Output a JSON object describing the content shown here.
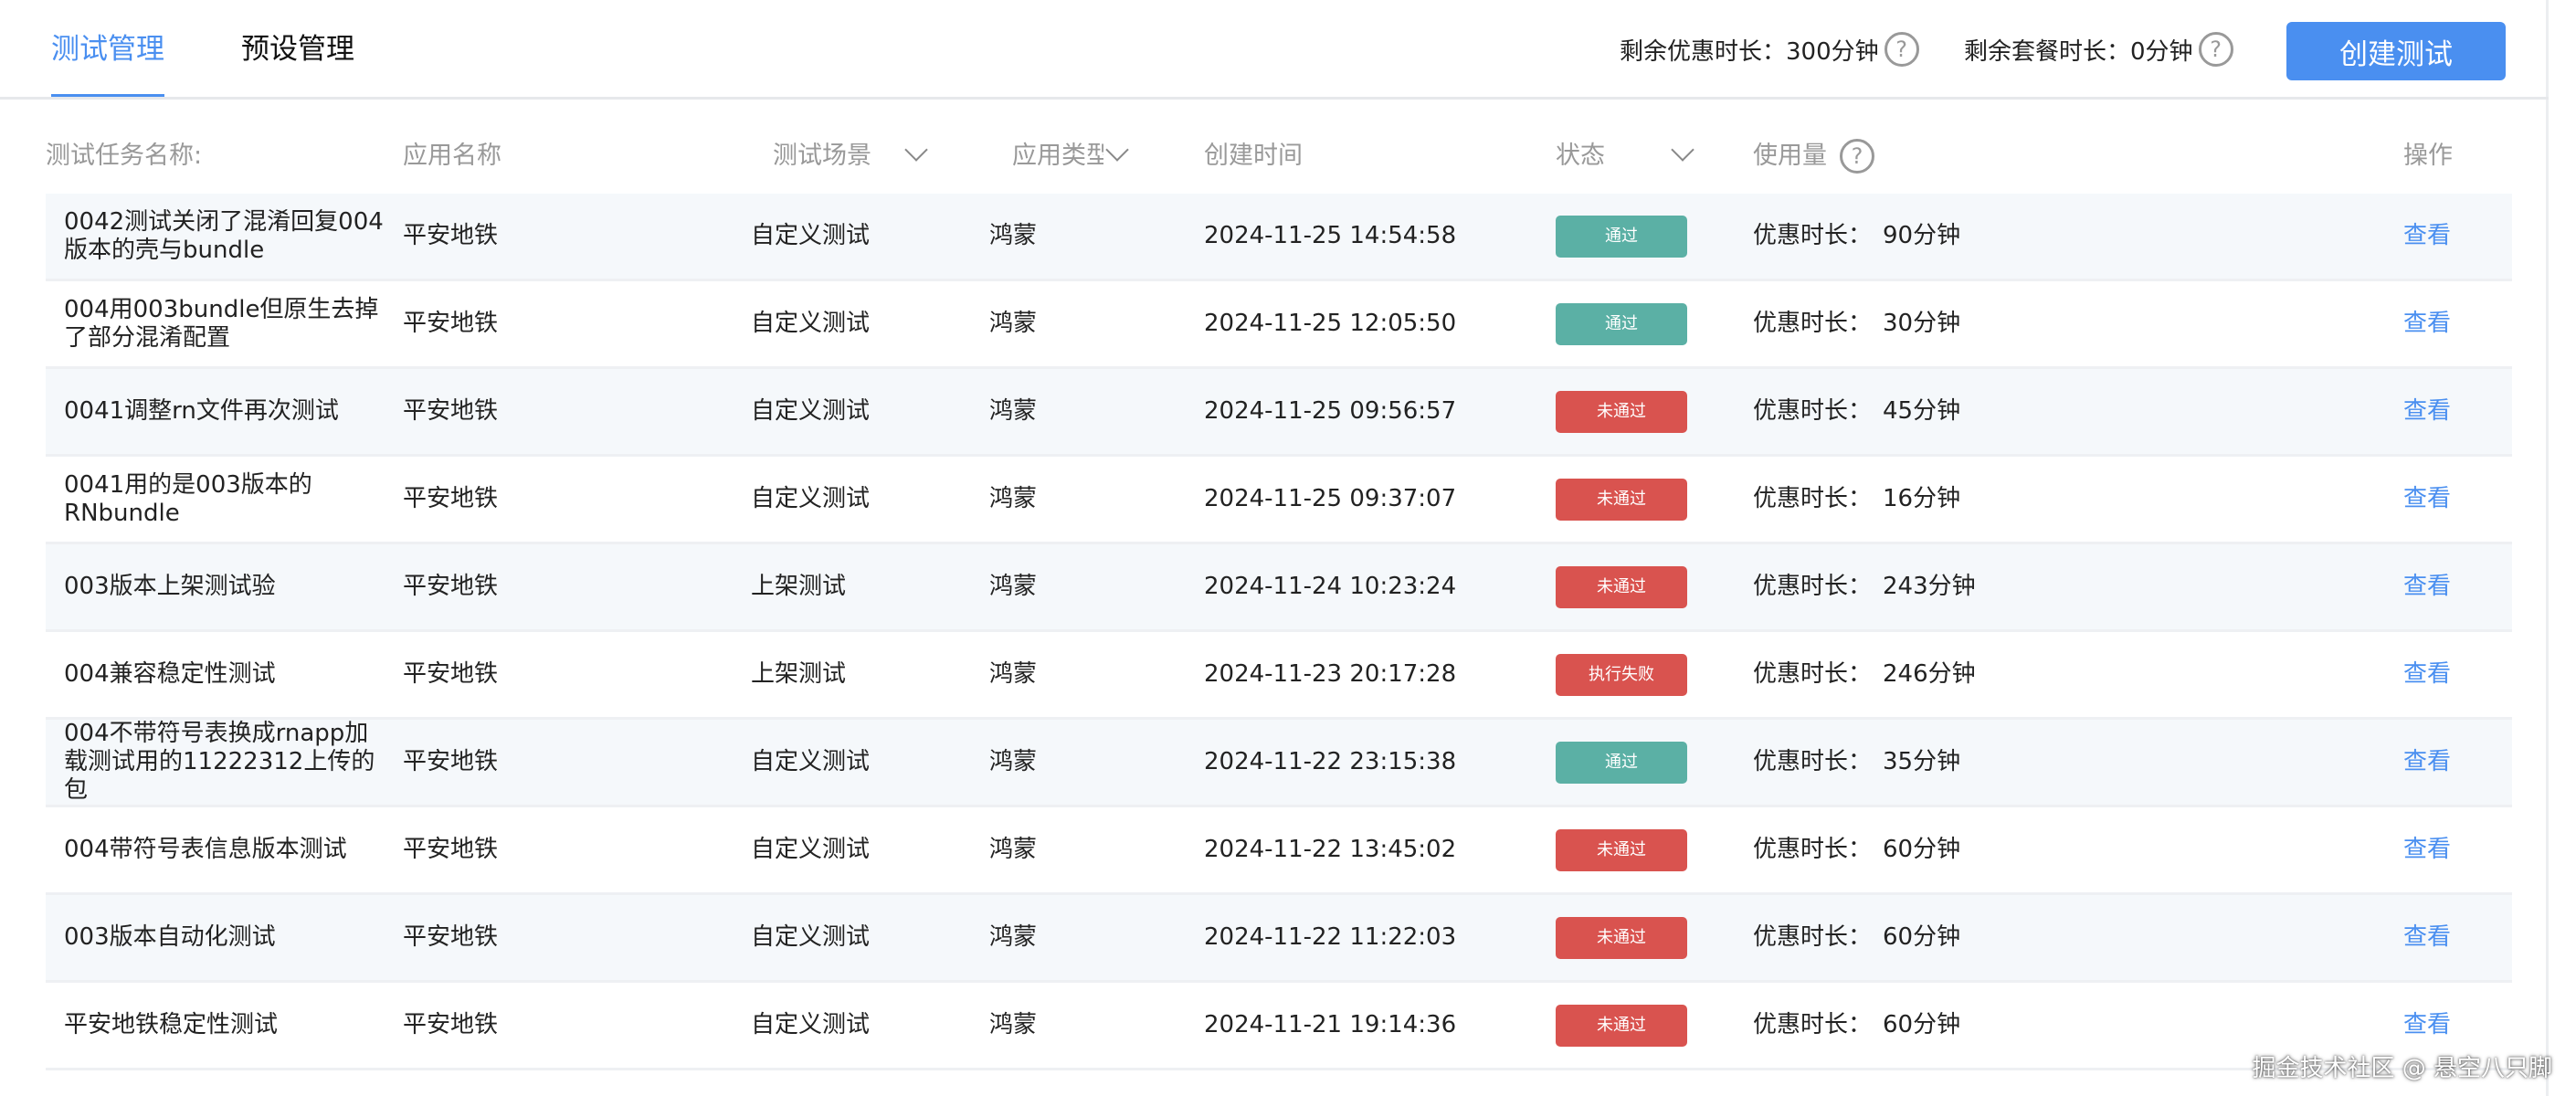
{
  "tabs": [
    {
      "label": "测试管理",
      "active": true
    },
    {
      "label": "预设管理",
      "active": false
    }
  ],
  "quota": {
    "discount_label": "剩余优惠时长：",
    "discount_value": "300分钟",
    "package_label": "剩余套餐时长：",
    "package_value": "0分钟",
    "help_icon": "question-circle-icon"
  },
  "create_button": "创建测试",
  "colors": {
    "accent": "#4a8ff0",
    "pass": "#5bb0a5",
    "fail": "#d9534f"
  },
  "columns": {
    "name": "测试任务名称:",
    "app": "应用名称",
    "scene": "测试场景",
    "type": "应用类型",
    "time": "创建时间",
    "status": "状态",
    "usage": "使用量",
    "action": "操作"
  },
  "rows": [
    {
      "name": "0042测试关闭了混淆回复004版本的壳与bundle",
      "app": "平安地铁",
      "scene": "自定义测试",
      "type": "鸿蒙",
      "time": "2024-11-25 14:54:58",
      "status": "通过",
      "usage_label": "优惠时长：",
      "usage": "90分钟",
      "action": "查看"
    },
    {
      "name": "004用003bundle但原生去掉了部分混淆配置",
      "app": "平安地铁",
      "scene": "自定义测试",
      "type": "鸿蒙",
      "time": "2024-11-25 12:05:50",
      "status": "通过",
      "usage_label": "优惠时长：",
      "usage": "30分钟",
      "action": "查看"
    },
    {
      "name": "0041调整rn文件再次测试",
      "app": "平安地铁",
      "scene": "自定义测试",
      "type": "鸿蒙",
      "time": "2024-11-25 09:56:57",
      "status": "未通过",
      "usage_label": "优惠时长：",
      "usage": "45分钟",
      "action": "查看"
    },
    {
      "name": "0041用的是003版本的RNbundle",
      "app": "平安地铁",
      "scene": "自定义测试",
      "type": "鸿蒙",
      "time": "2024-11-25 09:37:07",
      "status": "未通过",
      "usage_label": "优惠时长：",
      "usage": "16分钟",
      "action": "查看"
    },
    {
      "name": "003版本上架测试验",
      "app": "平安地铁",
      "scene": "上架测试",
      "type": "鸿蒙",
      "time": "2024-11-24 10:23:24",
      "status": "未通过",
      "usage_label": "优惠时长：",
      "usage": "243分钟",
      "action": "查看"
    },
    {
      "name": "004兼容稳定性测试",
      "app": "平安地铁",
      "scene": "上架测试",
      "type": "鸿蒙",
      "time": "2024-11-23 20:17:28",
      "status": "执行失败",
      "usage_label": "优惠时长：",
      "usage": "246分钟",
      "action": "查看"
    },
    {
      "name": "004不带符号表换成rnapp加载测试用的11222312上传的包",
      "app": "平安地铁",
      "scene": "自定义测试",
      "type": "鸿蒙",
      "time": "2024-11-22 23:15:38",
      "status": "通过",
      "usage_label": "优惠时长：",
      "usage": "35分钟",
      "action": "查看"
    },
    {
      "name": "004带符号表信息版本测试",
      "app": "平安地铁",
      "scene": "自定义测试",
      "type": "鸿蒙",
      "time": "2024-11-22 13:45:02",
      "status": "未通过",
      "usage_label": "优惠时长：",
      "usage": "60分钟",
      "action": "查看"
    },
    {
      "name": "003版本自动化测试",
      "app": "平安地铁",
      "scene": "自定义测试",
      "type": "鸿蒙",
      "time": "2024-11-22 11:22:03",
      "status": "未通过",
      "usage_label": "优惠时长：",
      "usage": "60分钟",
      "action": "查看"
    },
    {
      "name": "平安地铁稳定性测试",
      "app": "平安地铁",
      "scene": "自定义测试",
      "type": "鸿蒙",
      "time": "2024-11-21 19:14:36",
      "status": "未通过",
      "usage_label": "优惠时长：",
      "usage": "60分钟",
      "action": "查看"
    }
  ],
  "watermark": "掘金技术社区 @ 悬空八只脚"
}
